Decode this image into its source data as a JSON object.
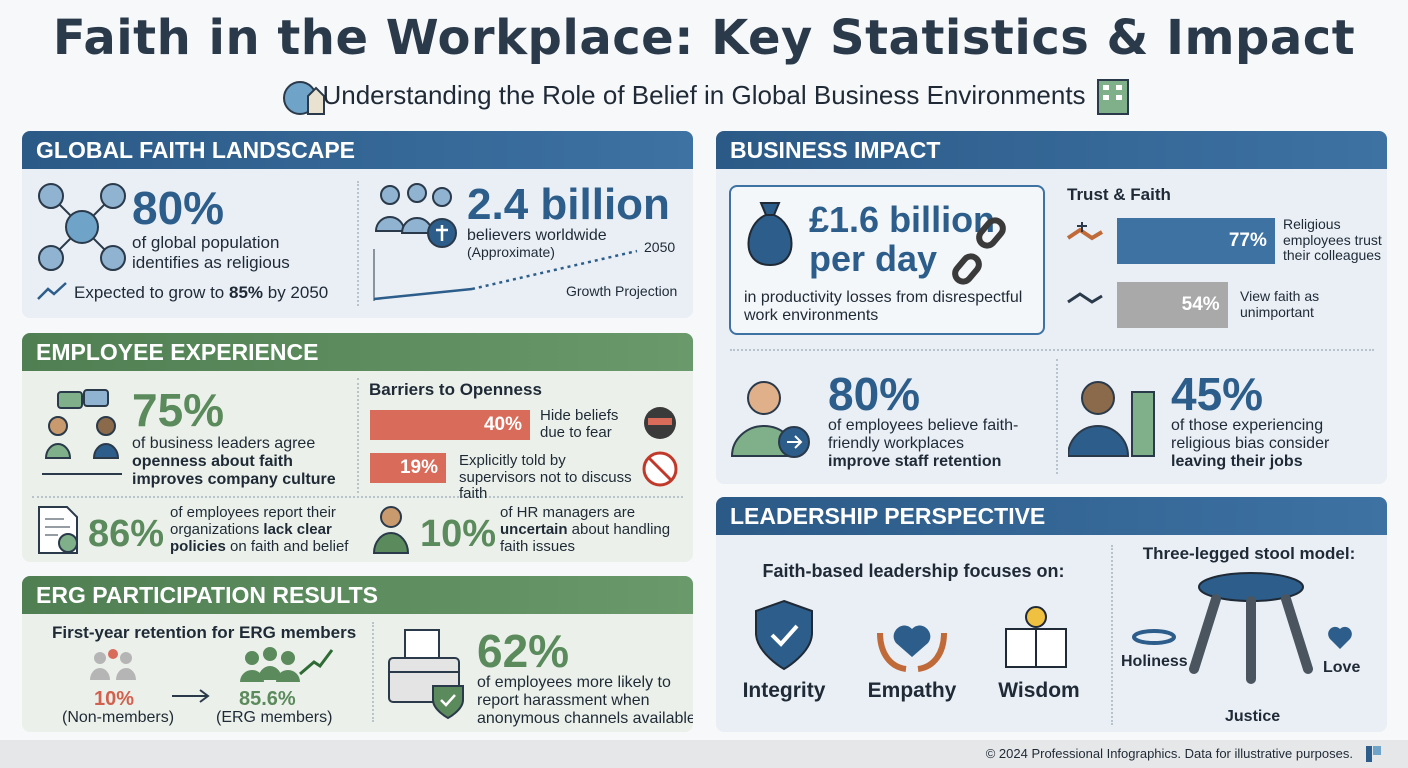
{
  "header": {
    "title": "Faith in the Workplace: Key Statistics & Impact",
    "subtitle": "Understanding the Role of Belief in Global Business Environments"
  },
  "global_faith": {
    "heading": "GLOBAL FAITH LANDSCAPE",
    "stat": "80%",
    "desc": "of global population identifies as religious",
    "growth": [
      "Expected to grow to ",
      "85%",
      " by 2050"
    ],
    "believers": "2.4 billion",
    "believers_desc": "believers worldwide",
    "believers_note": "(Approximate)",
    "projection_end": "2050",
    "projection_label": "Growth Projection"
  },
  "employee_experience": {
    "heading": "EMPLOYEE EXPERIENCE",
    "leaders_stat": "75%",
    "leaders_desc": [
      "of business leaders agree",
      "openness about faith improves company culture"
    ],
    "barriers": {
      "title": "Barriers to Openness",
      "values": [
        40,
        19
      ],
      "value_labels": [
        "40%",
        "19%"
      ],
      "labels": [
        "Hide beliefs due to fear",
        "Explicitly told by supervisors not to discuss faith"
      ]
    },
    "policies_stat": "86%",
    "policies_desc": [
      "of employees report their organizations ",
      "lack clear policies",
      " on faith and belief"
    ],
    "hr_stat": "10%",
    "hr_desc": [
      "of HR managers are ",
      "uncertain",
      " about handling faith issues"
    ]
  },
  "erg": {
    "heading": "ERG PARTICIPATION RESULTS",
    "retention_title": "First-year retention for ERG members",
    "non_members_value": "10%",
    "non_members_label": "(Non-members)",
    "members_value": "85.6%",
    "members_label": "(ERG members)",
    "report_stat": "62%",
    "report_desc": "of employees more likely to report harassment when anonymous channels available"
  },
  "business_impact": {
    "heading": "BUSINESS IMPACT",
    "loss_stat": "£1.6 billion per day",
    "loss_desc": "in productivity losses from disrespectful work environments",
    "trust": {
      "title": "Trust & Faith",
      "values": [
        77,
        54
      ],
      "value_labels": [
        "77%",
        "54%"
      ],
      "labels": [
        "Religious employees trust their colleagues",
        "View faith as unimportant"
      ]
    },
    "retention_stat": "80%",
    "retention_desc": [
      "of employees believe faith-friendly workplaces ",
      "improve staff retention"
    ],
    "bias_stat": "45%",
    "bias_desc": [
      "of those experiencing religious bias consider ",
      "leaving their jobs"
    ]
  },
  "leadership": {
    "heading": "LEADERSHIP PERSPECTIVE",
    "focus_title": "Faith-based leadership focuses on:",
    "focus_items": [
      "Integrity",
      "Empathy",
      "Wisdom"
    ],
    "stool_title": "Three-legged stool model:",
    "stool_labels": [
      "Holiness",
      "Love",
      "Justice"
    ]
  },
  "footer": {
    "text": "© 2024 Professional Infographics. Data for illustrative purposes."
  }
}
